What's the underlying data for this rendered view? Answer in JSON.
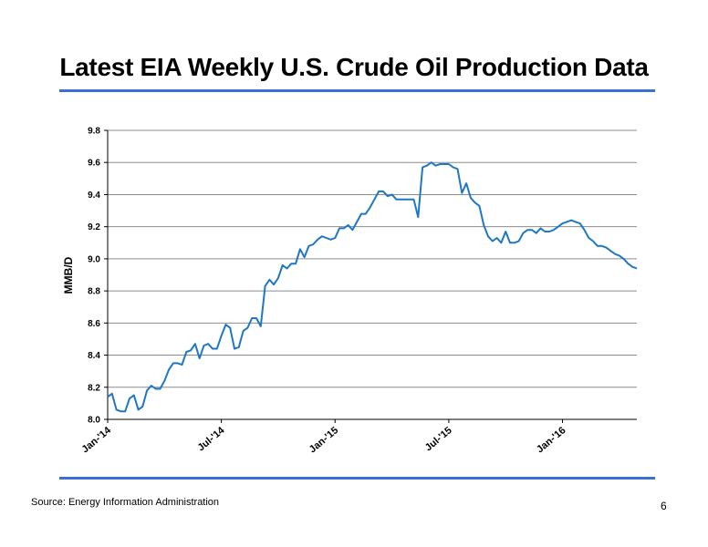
{
  "slide": {
    "title": "Latest EIA Weekly U.S. Crude Oil Production Data",
    "source": "Source: Energy Information Administration",
    "page_number": "6"
  },
  "colors": {
    "accent_rule": "#3a6fd6",
    "series_line": "#1f77c4",
    "grid": "#8c8c8c"
  },
  "chart_data": {
    "type": "line",
    "title": "",
    "xlabel": "",
    "ylabel": "MMB/D",
    "ylim": [
      8.0,
      9.8
    ],
    "yticks": [
      "8.0",
      "8.2",
      "8.4",
      "8.6",
      "8.8",
      "9.0",
      "9.2",
      "9.4",
      "9.6",
      "9.8"
    ],
    "xlim": [
      "2014-01-03",
      "2016-04-29"
    ],
    "xticks": [
      {
        "label": "Jan-'14",
        "date": "2014-01-03"
      },
      {
        "label": "Jul-'14",
        "date": "2014-07-04"
      },
      {
        "label": "Jan-'15",
        "date": "2015-01-02"
      },
      {
        "label": "Jul-'15",
        "date": "2015-07-03"
      },
      {
        "label": "Jan-'16",
        "date": "2016-01-01"
      }
    ],
    "grid": "horizontal",
    "legend": "none",
    "series": [
      {
        "x": [
          "2014-01-03",
          "2014-01-10",
          "2014-01-17",
          "2014-01-24",
          "2014-01-31",
          "2014-02-07",
          "2014-02-14",
          "2014-02-21",
          "2014-02-28",
          "2014-03-07",
          "2014-03-14",
          "2014-03-21",
          "2014-03-28",
          "2014-04-04",
          "2014-04-11",
          "2014-04-18",
          "2014-04-25",
          "2014-05-02",
          "2014-05-09",
          "2014-05-16",
          "2014-05-23",
          "2014-05-30",
          "2014-06-06",
          "2014-06-13",
          "2014-06-20",
          "2014-06-27",
          "2014-07-04",
          "2014-07-11",
          "2014-07-18",
          "2014-07-25",
          "2014-08-01",
          "2014-08-08",
          "2014-08-15",
          "2014-08-22",
          "2014-08-29",
          "2014-09-05",
          "2014-09-12",
          "2014-09-19",
          "2014-09-26",
          "2014-10-03",
          "2014-10-10",
          "2014-10-17",
          "2014-10-24",
          "2014-10-31",
          "2014-11-07",
          "2014-11-14",
          "2014-11-21",
          "2014-11-28",
          "2014-12-05",
          "2014-12-12",
          "2014-12-19",
          "2014-12-26",
          "2015-01-02",
          "2015-01-09",
          "2015-01-16",
          "2015-01-23",
          "2015-01-30",
          "2015-02-06",
          "2015-02-13",
          "2015-02-20",
          "2015-02-27",
          "2015-03-06",
          "2015-03-13",
          "2015-03-20",
          "2015-03-27",
          "2015-04-03",
          "2015-04-10",
          "2015-04-17",
          "2015-04-24",
          "2015-05-01",
          "2015-05-08",
          "2015-05-15",
          "2015-05-22",
          "2015-05-29",
          "2015-06-05",
          "2015-06-12",
          "2015-06-19",
          "2015-06-26",
          "2015-07-03",
          "2015-07-10",
          "2015-07-17",
          "2015-07-24",
          "2015-07-31",
          "2015-08-07",
          "2015-08-14",
          "2015-08-21",
          "2015-08-28",
          "2015-09-04",
          "2015-09-11",
          "2015-09-18",
          "2015-09-25",
          "2015-10-02",
          "2015-10-09",
          "2015-10-16",
          "2015-10-23",
          "2015-10-30",
          "2015-11-06",
          "2015-11-13",
          "2015-11-20",
          "2015-11-27",
          "2015-12-04",
          "2015-12-11",
          "2015-12-18",
          "2015-12-25",
          "2016-01-01",
          "2016-01-08",
          "2016-01-15",
          "2016-01-22",
          "2016-01-29",
          "2016-02-05",
          "2016-02-12",
          "2016-02-19",
          "2016-02-26",
          "2016-03-04",
          "2016-03-11",
          "2016-03-18",
          "2016-03-25",
          "2016-04-01",
          "2016-04-08",
          "2016-04-15",
          "2016-04-22",
          "2016-04-29"
        ],
        "values": [
          8.14,
          8.16,
          8.06,
          8.05,
          8.05,
          8.13,
          8.15,
          8.06,
          8.08,
          8.18,
          8.21,
          8.19,
          8.19,
          8.24,
          8.31,
          8.35,
          8.35,
          8.34,
          8.42,
          8.43,
          8.47,
          8.38,
          8.46,
          8.47,
          8.44,
          8.44,
          8.52,
          8.59,
          8.57,
          8.44,
          8.45,
          8.55,
          8.57,
          8.63,
          8.63,
          8.58,
          8.83,
          8.87,
          8.84,
          8.88,
          8.96,
          8.94,
          8.97,
          8.97,
          9.06,
          9.01,
          9.08,
          9.09,
          9.12,
          9.14,
          9.13,
          9.12,
          9.13,
          9.19,
          9.19,
          9.21,
          9.18,
          9.23,
          9.28,
          9.28,
          9.32,
          9.37,
          9.42,
          9.42,
          9.39,
          9.4,
          9.37,
          9.37,
          9.37,
          9.37,
          9.37,
          9.26,
          9.57,
          9.58,
          9.6,
          9.58,
          9.59,
          9.59,
          9.59,
          9.57,
          9.56,
          9.41,
          9.47,
          9.38,
          9.35,
          9.33,
          9.21,
          9.14,
          9.11,
          9.13,
          9.1,
          9.17,
          9.1,
          9.1,
          9.11,
          9.16,
          9.18,
          9.18,
          9.16,
          9.19,
          9.17,
          9.17,
          9.18,
          9.2,
          9.22,
          9.23,
          9.24,
          9.23,
          9.22,
          9.18,
          9.13,
          9.11,
          9.08,
          9.08,
          9.07,
          9.05,
          9.03,
          9.02,
          9.0,
          8.97,
          8.95,
          8.94
        ]
      }
    ]
  }
}
